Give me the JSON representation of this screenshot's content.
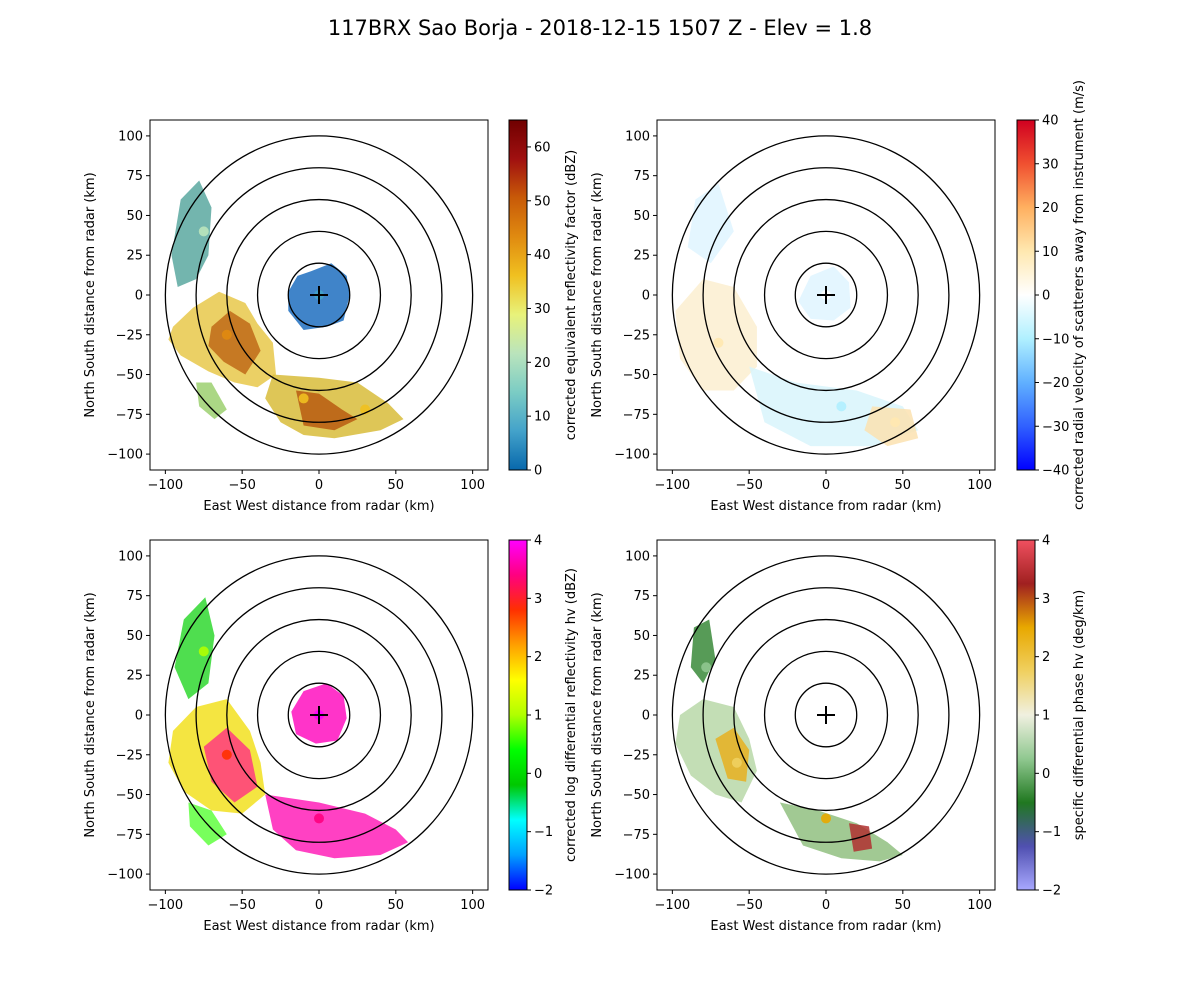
{
  "title": "117BRX Sao Borja - 2018-12-15 1507 Z -  Elev = 1.8",
  "chart_data": [
    {
      "type": "radar-ppi",
      "panel": "top-left",
      "xlabel": "East West distance from radar (km)",
      "ylabel": "North South distance from radar (km)",
      "xlim": [
        -110,
        110
      ],
      "ylim": [
        -110,
        110
      ],
      "xticks": [
        "−100",
        "−50",
        "0",
        "50",
        "100"
      ],
      "yticks": [
        "−100",
        "−75",
        "−50",
        "−25",
        "0",
        "25",
        "50",
        "75",
        "100"
      ],
      "range_rings_km": [
        20,
        40,
        60,
        80,
        100
      ],
      "colorbar": {
        "label": "corrected equivalent reflectivity factor (dBZ)",
        "range": [
          0,
          65
        ],
        "ticks": [
          "0",
          "10",
          "20",
          "30",
          "40",
          "50",
          "60"
        ],
        "colors": [
          "#0868ac",
          "#43a2ca",
          "#7bccc4",
          "#bae4bc",
          "#e8f27a",
          "#f0c020",
          "#e08a10",
          "#c85a08",
          "#a01010",
          "#700000"
        ]
      },
      "echoes": [
        {
          "region": "center",
          "x": 0,
          "y": 0,
          "value": 5
        },
        {
          "region": "west-southwest",
          "x": -60,
          "y": -25,
          "value": 40
        },
        {
          "region": "south",
          "x": -10,
          "y": -65,
          "value": 38
        },
        {
          "region": "south-southeast",
          "x": 30,
          "y": -72,
          "value": 35
        },
        {
          "region": "northwest",
          "x": -75,
          "y": 40,
          "value": 22
        }
      ]
    },
    {
      "type": "radar-ppi",
      "panel": "top-right",
      "xlabel": "East West distance from radar (km)",
      "ylabel": "North South distance from radar (km)",
      "xlim": [
        -110,
        110
      ],
      "ylim": [
        -110,
        110
      ],
      "xticks": [
        "−100",
        "−50",
        "0",
        "50",
        "100"
      ],
      "yticks": [
        "−100",
        "−75",
        "−50",
        "−25",
        "0",
        "25",
        "50",
        "75",
        "100"
      ],
      "range_rings_km": [
        20,
        40,
        60,
        80,
        100
      ],
      "colorbar": {
        "label": "corrected radial velocity of scatterers away from instrument (m/s)",
        "range": [
          -40,
          40
        ],
        "ticks": [
          "−40",
          "−30",
          "−20",
          "−10",
          "0",
          "10",
          "20",
          "30",
          "40"
        ],
        "colors": [
          "#0000ff",
          "#3060ff",
          "#60b0ff",
          "#b0f0ff",
          "#ffffff",
          "#ffe8b0",
          "#ffb060",
          "#f05030",
          "#d00020"
        ]
      },
      "echoes": [
        {
          "region": "center",
          "x": 0,
          "y": 0,
          "value": -5
        },
        {
          "region": "west",
          "x": -70,
          "y": -30,
          "value": 6
        },
        {
          "region": "south",
          "x": 10,
          "y": -70,
          "value": -6
        },
        {
          "region": "southeast",
          "x": 45,
          "y": -80,
          "value": 8
        }
      ]
    },
    {
      "type": "radar-ppi",
      "panel": "bottom-left",
      "xlabel": "East West distance from radar (km)",
      "ylabel": "North South distance from radar (km)",
      "xlim": [
        -110,
        110
      ],
      "ylim": [
        -110,
        110
      ],
      "xticks": [
        "−100",
        "−50",
        "0",
        "50",
        "100"
      ],
      "yticks": [
        "−100",
        "−75",
        "−50",
        "−25",
        "0",
        "25",
        "50",
        "75",
        "100"
      ],
      "range_rings_km": [
        20,
        40,
        60,
        80,
        100
      ],
      "colorbar": {
        "label": "corrected log differential reflectivity hv (dBZ)",
        "range": [
          -2,
          4
        ],
        "ticks": [
          "−2",
          "−1",
          "0",
          "1",
          "2",
          "3",
          "4"
        ],
        "colors": [
          "#0000ff",
          "#00a0ff",
          "#00ffff",
          "#00c800",
          "#00ff00",
          "#b0ff00",
          "#ffff00",
          "#ffa000",
          "#ff3000",
          "#ff0080",
          "#ff00ff"
        ]
      },
      "echoes": [
        {
          "region": "center",
          "x": 0,
          "y": 0,
          "value": 3.8
        },
        {
          "region": "west-southwest",
          "x": -60,
          "y": -25,
          "value": 2.5
        },
        {
          "region": "south",
          "x": 0,
          "y": -65,
          "value": 3.5
        },
        {
          "region": "northwest",
          "x": -75,
          "y": 40,
          "value": 1.2
        }
      ]
    },
    {
      "type": "radar-ppi",
      "panel": "bottom-right",
      "xlabel": "East West distance from radar (km)",
      "ylabel": "North South distance from radar (km)",
      "xlim": [
        -110,
        110
      ],
      "ylim": [
        -110,
        110
      ],
      "xticks": [
        "−100",
        "−50",
        "0",
        "50",
        "100"
      ],
      "yticks": [
        "−100",
        "−75",
        "−50",
        "−25",
        "0",
        "25",
        "50",
        "75",
        "100"
      ],
      "range_rings_km": [
        20,
        40,
        60,
        80,
        100
      ],
      "colorbar": {
        "label": "specific differential phase hv (deg/km)",
        "range": [
          -2,
          4
        ],
        "ticks": [
          "−2",
          "−1",
          "0",
          "1",
          "2",
          "3",
          "4"
        ],
        "colors": [
          "#a8a8ff",
          "#5050b0",
          "#207820",
          "#90c890",
          "#f0f0e0",
          "#f0d060",
          "#e8a800",
          "#a02020",
          "#f05060"
        ]
      },
      "echoes": [
        {
          "region": "west-southwest",
          "x": -58,
          "y": -30,
          "value": 1.5
        },
        {
          "region": "south",
          "x": 0,
          "y": -65,
          "value": 2.2
        },
        {
          "region": "northwest",
          "x": -78,
          "y": 30,
          "value": 0.2
        }
      ]
    }
  ]
}
